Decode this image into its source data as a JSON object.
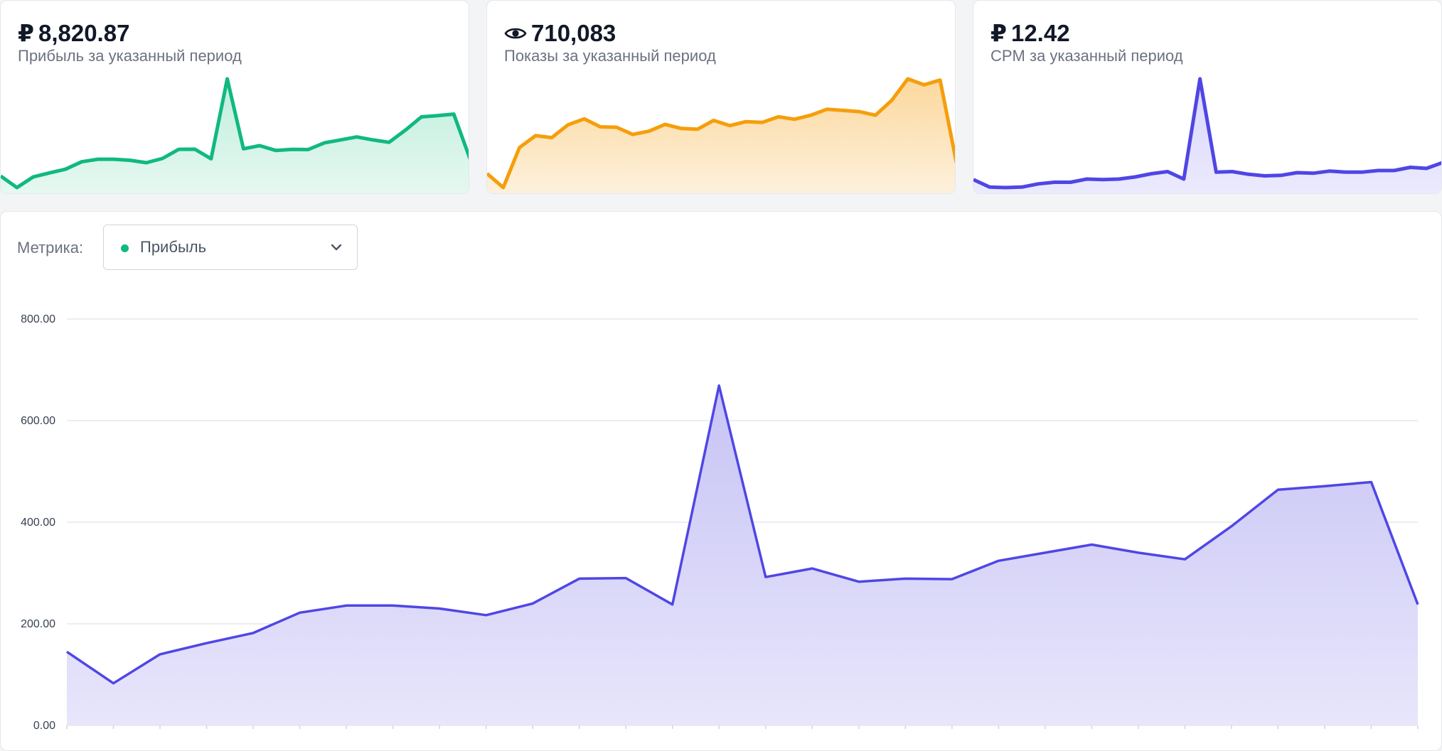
{
  "currency_symbol": "₽",
  "kpis": [
    {
      "value": "8,820.87",
      "label": "Прибыль за указанный период",
      "icon": "ruble-icon",
      "color": "#10b981",
      "fill_top": "#bfeedd",
      "fill_bottom": "#e7f8f1",
      "series": [
        145,
        83,
        140,
        162,
        182,
        222,
        236,
        236,
        230,
        217,
        240,
        289,
        290,
        238,
        669,
        292,
        309,
        283,
        289,
        288,
        324,
        340,
        356,
        340,
        327,
        392,
        464,
        471,
        479,
        238
      ]
    },
    {
      "value": "710,083",
      "label": "Показы за указанный период",
      "icon": "eye-icon",
      "color": "#f59e0b",
      "fill_top": "#fcd89d",
      "fill_bottom": "#fdf1dd",
      "series": [
        39.0,
        35.5,
        45.5,
        48.5,
        48.0,
        51.2,
        52.7,
        50.7,
        50.6,
        48.8,
        49.6,
        51.3,
        50.3,
        50.1,
        52.3,
        51.0,
        52.0,
        51.8,
        53.2,
        52.6,
        53.6,
        55.1,
        54.8,
        54.5,
        53.6,
        57.3,
        62.7,
        61.2,
        62.4,
        41.8
      ]
    },
    {
      "value": "12.42",
      "label": "CPM за указанный период",
      "icon": "ruble-icon",
      "color": "#4f46e5",
      "fill_top": "#d9d6fb",
      "fill_bottom": "#eceafd",
      "series": [
        10.9,
        9.5,
        9.4,
        9.5,
        10.1,
        10.4,
        10.4,
        11.0,
        10.9,
        11.0,
        11.4,
        12.0,
        12.4,
        11.0,
        29.8,
        12.3,
        12.4,
        11.9,
        11.6,
        11.7,
        12.2,
        12.1,
        12.5,
        12.3,
        12.3,
        12.6,
        12.6,
        13.2,
        13.0,
        14.1
      ]
    }
  ],
  "metric_selector": {
    "label": "Метрика:",
    "selected": "Прибыль",
    "dot_color": "#10b981"
  },
  "chart_data": {
    "type": "area",
    "title": "",
    "xlabel": "",
    "ylabel": "",
    "ylim": [
      0,
      800
    ],
    "yticks": [
      "0.00",
      "200.00",
      "400.00",
      "600.00",
      "800.00"
    ],
    "grid": true,
    "line_color": "#4f46e5",
    "fill_top": "#c7c3f5",
    "fill_bottom": "#e8e6fb",
    "series": [
      {
        "values": [
          145,
          83,
          140,
          162,
          182,
          222,
          236,
          236,
          230,
          217,
          240,
          289,
          290,
          238,
          669,
          292,
          309,
          283,
          289,
          288,
          324,
          340,
          356,
          340,
          327,
          392,
          464,
          471,
          479,
          238
        ]
      }
    ]
  }
}
